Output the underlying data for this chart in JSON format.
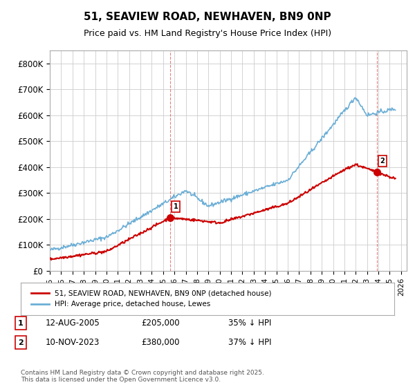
{
  "title": "51, SEAVIEW ROAD, NEWHAVEN, BN9 0NP",
  "subtitle": "Price paid vs. HM Land Registry's House Price Index (HPI)",
  "ylabel_ticks": [
    "£0",
    "£100K",
    "£200K",
    "£300K",
    "£400K",
    "£500K",
    "£600K",
    "£700K",
    "£800K"
  ],
  "ytick_values": [
    0,
    100000,
    200000,
    300000,
    400000,
    500000,
    600000,
    700000,
    800000
  ],
  "ylim": [
    0,
    850000
  ],
  "xlim_start": 1995.0,
  "xlim_end": 2026.5,
  "marker1_x": 2005.6,
  "marker1_y": 205000,
  "marker2_x": 2023.85,
  "marker2_y": 380000,
  "marker1_label": "1",
  "marker2_label": "2",
  "sale_color": "#cc0000",
  "hpi_color": "#6baed6",
  "vline_color": "#cc0000",
  "vline_alpha": 0.5,
  "legend_sale": "51, SEAVIEW ROAD, NEWHAVEN, BN9 0NP (detached house)",
  "legend_hpi": "HPI: Average price, detached house, Lewes",
  "table_rows": [
    {
      "num": "1",
      "date": "12-AUG-2005",
      "price": "£205,000",
      "hpi": "35% ↓ HPI"
    },
    {
      "num": "2",
      "date": "10-NOV-2023",
      "price": "£380,000",
      "hpi": "37% ↓ HPI"
    }
  ],
  "footnote": "Contains HM Land Registry data © Crown copyright and database right 2025.\nThis data is licensed under the Open Government Licence v3.0.",
  "background_color": "#ffffff",
  "grid_color": "#cccccc"
}
